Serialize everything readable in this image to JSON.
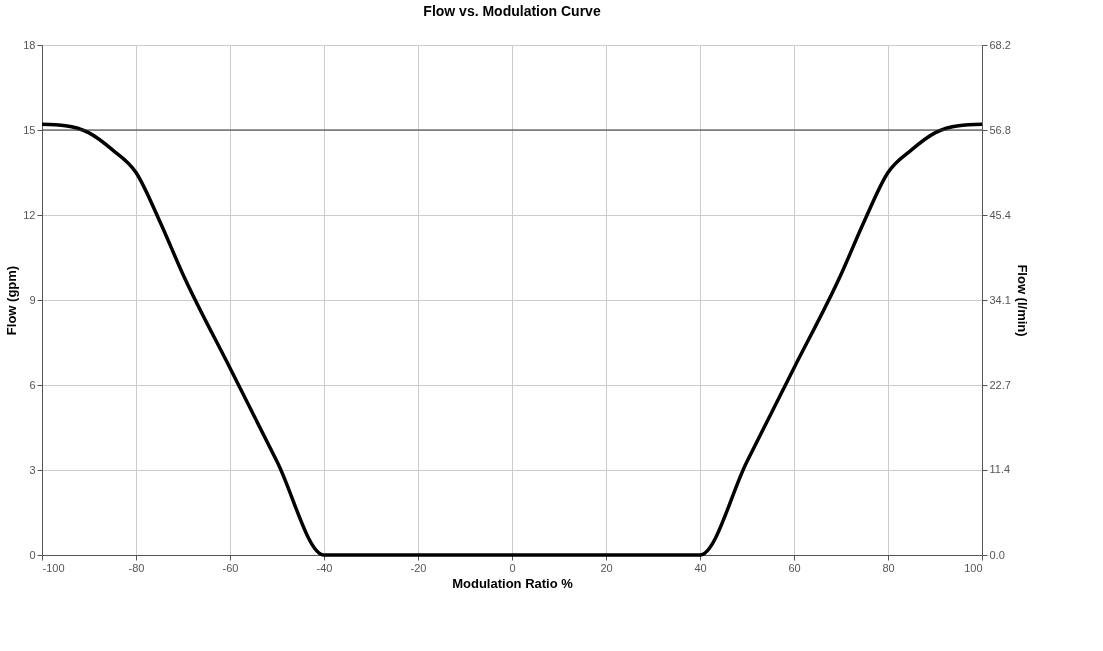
{
  "chart_data": {
    "type": "line",
    "title": "Flow vs. Modulation Curve",
    "xlabel": "Modulation Ratio %",
    "ylabel": "Flow (gpm)",
    "y2label": "Flow (l/min)",
    "x": [
      -100,
      -95,
      -90,
      -85,
      -80,
      -75,
      -70,
      -60,
      -50,
      -40,
      40,
      50,
      60,
      70,
      75,
      80,
      85,
      90,
      95,
      100
    ],
    "series": [
      {
        "color": "#000000",
        "values": [
          15.2,
          15.15,
          14.9,
          14.3,
          13.5,
          11.8,
          9.9,
          6.6,
          3.3,
          0,
          0,
          3.3,
          6.6,
          9.9,
          11.8,
          13.5,
          14.3,
          14.9,
          15.15,
          15.2
        ]
      }
    ],
    "xlim": [
      -100,
      100
    ],
    "xticks": [
      -100,
      -80,
      -60,
      -40,
      -20,
      0,
      20,
      40,
      60,
      80,
      100
    ],
    "ylim": [
      0,
      18
    ],
    "yticks": [
      0,
      3,
      6,
      9,
      12,
      15,
      18
    ],
    "y2lim": [
      0,
      68.2
    ],
    "y2ticks": [
      {
        "value": 0,
        "label": "0.0"
      },
      11.4,
      22.7,
      34.1,
      45.4,
      56.8,
      68.2
    ],
    "ref_lines": [
      {
        "axis": "y",
        "value": 15,
        "color": "#333333"
      }
    ],
    "grid": true,
    "marker": "none",
    "line_style": "solid"
  }
}
